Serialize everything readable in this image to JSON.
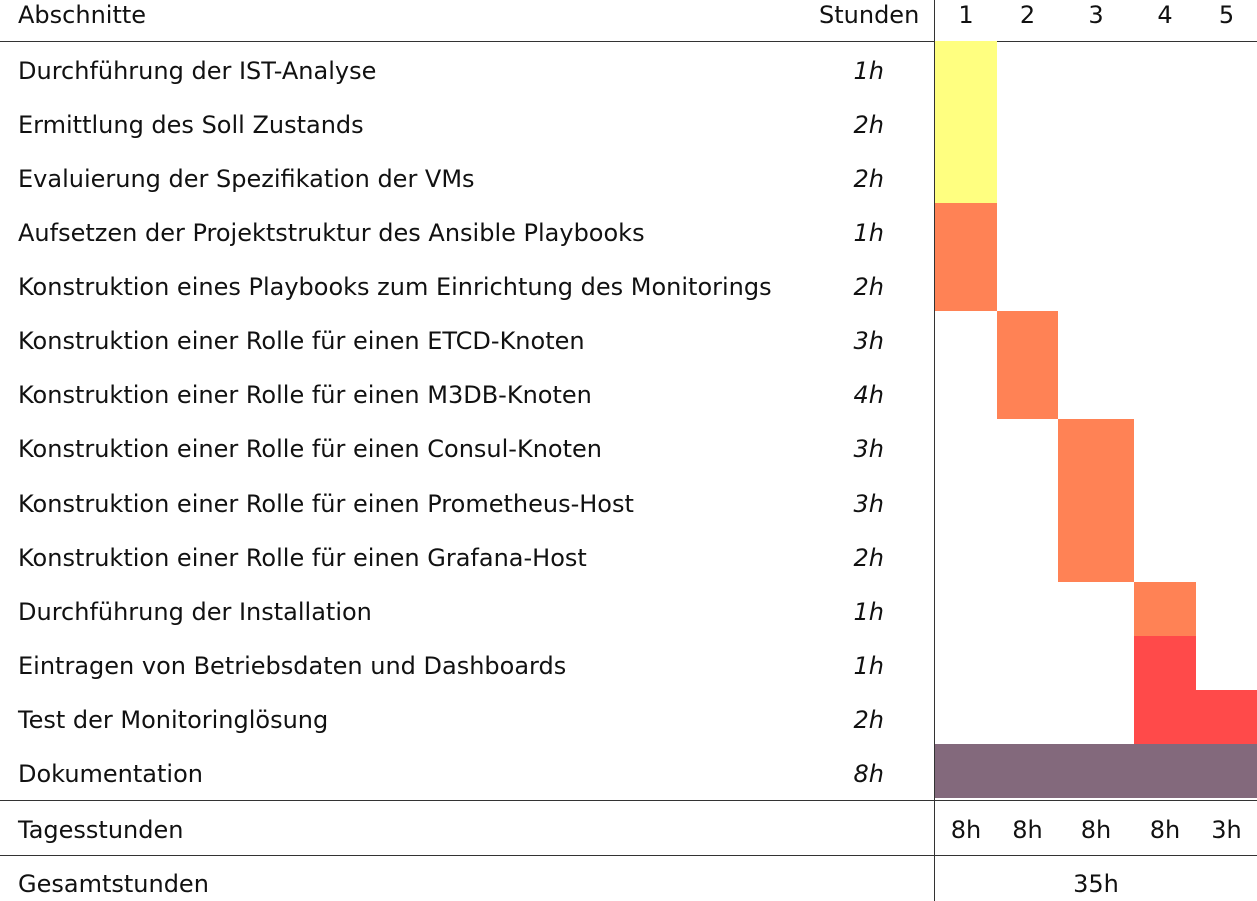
{
  "header": {
    "sections_label": "Abschnitte",
    "hours_label": "Stunden",
    "days": [
      "1",
      "2",
      "3",
      "4",
      "5"
    ]
  },
  "tasks": [
    {
      "name": "Durchführung der IST-Analyse",
      "hours": "1h",
      "start_day": 1,
      "end_day": 1,
      "color": "#ffff80"
    },
    {
      "name": "Ermittlung des Soll Zustands",
      "hours": "2h",
      "start_day": 1,
      "end_day": 1,
      "color": "#ffff80"
    },
    {
      "name": "Evaluierung der Spezifikation der VMs",
      "hours": "2h",
      "start_day": 1,
      "end_day": 1,
      "color": "#ffff80"
    },
    {
      "name": "Aufsetzen der Projektstruktur des Ansible Playbooks",
      "hours": "1h",
      "start_day": 1,
      "end_day": 1,
      "color": "#ff8255"
    },
    {
      "name": "Konstruktion eines Playbooks zum Einrichtung des Monitorings",
      "hours": "2h",
      "start_day": 1,
      "end_day": 1,
      "color": "#ff8255"
    },
    {
      "name": "Konstruktion einer Rolle für einen ETCD-Knoten",
      "hours": "3h",
      "start_day": 2,
      "end_day": 2,
      "color": "#ff8255"
    },
    {
      "name": "Konstruktion einer Rolle für einen M3DB-Knoten",
      "hours": "4h",
      "start_day": 2,
      "end_day": 2,
      "color": "#ff8255"
    },
    {
      "name": "Konstruktion einer Rolle für einen Consul-Knoten",
      "hours": "3h",
      "start_day": 3,
      "end_day": 3,
      "color": "#ff8255"
    },
    {
      "name": "Konstruktion einer Rolle für einen Prometheus-Host",
      "hours": "3h",
      "start_day": 3,
      "end_day": 3,
      "color": "#ff8255"
    },
    {
      "name": "Konstruktion einer Rolle für einen Grafana-Host",
      "hours": "2h",
      "start_day": 3,
      "end_day": 3,
      "color": "#ff8255"
    },
    {
      "name": "Durchführung der Installation",
      "hours": "1h",
      "start_day": 4,
      "end_day": 4,
      "color": "#ff8255"
    },
    {
      "name": "Eintragen von Betriebsdaten und Dashboards",
      "hours": "1h",
      "start_day": 4,
      "end_day": 4,
      "color": "#ff4a4a"
    },
    {
      "name": "Test der Monitoringlösung",
      "hours": "2h",
      "start_day": 4,
      "end_day": 5,
      "color": "#ff4a4a"
    },
    {
      "name": "Dokumentation",
      "hours": "8h",
      "start_day": 1,
      "end_day": 5,
      "color": "#83697c"
    }
  ],
  "daily_hours": {
    "label": "Tagesstunden",
    "values": [
      "8h",
      "8h",
      "8h",
      "8h",
      "3h"
    ]
  },
  "total": {
    "label": "Gesamtstunden",
    "value": "35h"
  }
}
